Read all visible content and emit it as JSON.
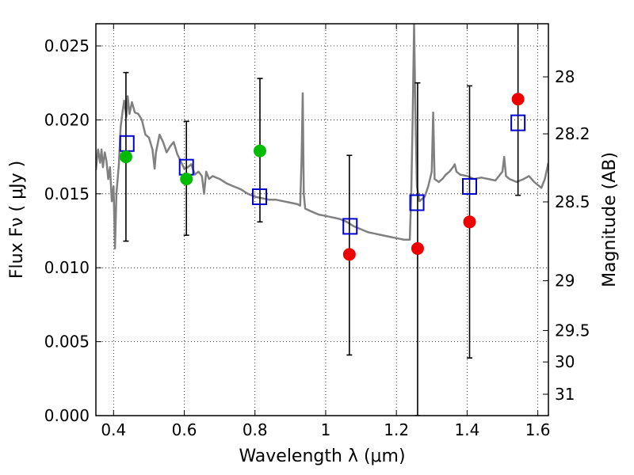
{
  "chart_data": {
    "type": "scatter",
    "xlabel": "Wavelength  λ (μm)",
    "ylabel": "Flux  Fν  ( μJy )",
    "y2label": "Magnitude (AB)",
    "xlim": [
      0.35,
      1.63
    ],
    "ylim": [
      0.0,
      0.0265
    ],
    "grid": true,
    "colors": {
      "sed": "#808080",
      "model_box": "#0000cc",
      "obs_green": "#00bb00",
      "obs_red": "#ee0000",
      "errbar": "#000000"
    },
    "x_ticks": [
      {
        "v": 0.4,
        "label": "0.4"
      },
      {
        "v": 0.6,
        "label": "0.6"
      },
      {
        "v": 0.8,
        "label": "0.8"
      },
      {
        "v": 1.0,
        "label": "1"
      },
      {
        "v": 1.2,
        "label": "1.2"
      },
      {
        "v": 1.4,
        "label": "1.4"
      },
      {
        "v": 1.6,
        "label": "1.6"
      }
    ],
    "y_ticks": [
      {
        "v": 0.0,
        "label": "0.000"
      },
      {
        "v": 0.005,
        "label": "0.005"
      },
      {
        "v": 0.01,
        "label": "0.010"
      },
      {
        "v": 0.015,
        "label": "0.015"
      },
      {
        "v": 0.02,
        "label": "0.020"
      },
      {
        "v": 0.025,
        "label": "0.025"
      }
    ],
    "y2_ticks": [
      {
        "mag": 28.0,
        "label": "28"
      },
      {
        "mag": 28.2,
        "label": "28.2"
      },
      {
        "mag": 28.5,
        "label": "28.5"
      },
      {
        "mag": 29.0,
        "label": "29"
      },
      {
        "mag": 29.5,
        "label": "29.5"
      },
      {
        "mag": 30.0,
        "label": "30"
      },
      {
        "mag": 31.0,
        "label": "31"
      }
    ],
    "sed_curve": [
      [
        0.35,
        0.0166
      ],
      [
        0.356,
        0.018
      ],
      [
        0.362,
        0.0171
      ],
      [
        0.366,
        0.018
      ],
      [
        0.37,
        0.0168
      ],
      [
        0.375,
        0.0178
      ],
      [
        0.38,
        0.0172
      ],
      [
        0.385,
        0.016
      ],
      [
        0.39,
        0.0168
      ],
      [
        0.395,
        0.0145
      ],
      [
        0.4,
        0.0155
      ],
      [
        0.404,
        0.0113
      ],
      [
        0.408,
        0.015
      ],
      [
        0.415,
        0.017
      ],
      [
        0.42,
        0.0195
      ],
      [
        0.425,
        0.0205
      ],
      [
        0.43,
        0.0213
      ],
      [
        0.436,
        0.0202
      ],
      [
        0.44,
        0.0216
      ],
      [
        0.445,
        0.0204
      ],
      [
        0.452,
        0.0212
      ],
      [
        0.46,
        0.0205
      ],
      [
        0.47,
        0.0204
      ],
      [
        0.48,
        0.02
      ],
      [
        0.49,
        0.019
      ],
      [
        0.5,
        0.0188
      ],
      [
        0.51,
        0.018
      ],
      [
        0.516,
        0.0167
      ],
      [
        0.52,
        0.0178
      ],
      [
        0.53,
        0.019
      ],
      [
        0.54,
        0.0185
      ],
      [
        0.55,
        0.0178
      ],
      [
        0.56,
        0.0182
      ],
      [
        0.57,
        0.0185
      ],
      [
        0.58,
        0.0177
      ],
      [
        0.59,
        0.0172
      ],
      [
        0.6,
        0.0167
      ],
      [
        0.61,
        0.0168
      ],
      [
        0.62,
        0.017
      ],
      [
        0.63,
        0.0163
      ],
      [
        0.64,
        0.0165
      ],
      [
        0.65,
        0.0162
      ],
      [
        0.656,
        0.015
      ],
      [
        0.662,
        0.0165
      ],
      [
        0.67,
        0.016
      ],
      [
        0.68,
        0.0162
      ],
      [
        0.7,
        0.016
      ],
      [
        0.72,
        0.0157
      ],
      [
        0.74,
        0.0155
      ],
      [
        0.76,
        0.0153
      ],
      [
        0.78,
        0.015
      ],
      [
        0.8,
        0.0148
      ],
      [
        0.82,
        0.0147
      ],
      [
        0.84,
        0.0146
      ],
      [
        0.86,
        0.0146
      ],
      [
        0.88,
        0.0145
      ],
      [
        0.9,
        0.0144
      ],
      [
        0.92,
        0.0143
      ],
      [
        0.928,
        0.0142
      ],
      [
        0.932,
        0.0175
      ],
      [
        0.935,
        0.0218
      ],
      [
        0.938,
        0.015
      ],
      [
        0.942,
        0.014
      ],
      [
        0.96,
        0.0138
      ],
      [
        0.98,
        0.0136
      ],
      [
        1.0,
        0.0135
      ],
      [
        1.02,
        0.0134
      ],
      [
        1.04,
        0.0133
      ],
      [
        1.06,
        0.0131
      ],
      [
        1.08,
        0.0128
      ],
      [
        1.1,
        0.0126
      ],
      [
        1.12,
        0.0124
      ],
      [
        1.14,
        0.0123
      ],
      [
        1.16,
        0.0122
      ],
      [
        1.18,
        0.0121
      ],
      [
        1.2,
        0.012
      ],
      [
        1.22,
        0.0119
      ],
      [
        1.238,
        0.0119
      ],
      [
        1.242,
        0.015
      ],
      [
        1.246,
        0.02
      ],
      [
        1.25,
        0.0265
      ],
      [
        1.254,
        0.02
      ],
      [
        1.258,
        0.0155
      ],
      [
        1.265,
        0.0145
      ],
      [
        1.28,
        0.0148
      ],
      [
        1.29,
        0.0155
      ],
      [
        1.3,
        0.0165
      ],
      [
        1.304,
        0.0205
      ],
      [
        1.308,
        0.016
      ],
      [
        1.32,
        0.0158
      ],
      [
        1.33,
        0.016
      ],
      [
        1.34,
        0.0163
      ],
      [
        1.35,
        0.0165
      ],
      [
        1.36,
        0.0168
      ],
      [
        1.365,
        0.017
      ],
      [
        1.37,
        0.0165
      ],
      [
        1.38,
        0.0163
      ],
      [
        1.4,
        0.0162
      ],
      [
        1.42,
        0.016
      ],
      [
        1.44,
        0.0161
      ],
      [
        1.46,
        0.016
      ],
      [
        1.48,
        0.0159
      ],
      [
        1.5,
        0.0165
      ],
      [
        1.505,
        0.0175
      ],
      [
        1.51,
        0.0162
      ],
      [
        1.52,
        0.016
      ],
      [
        1.54,
        0.0158
      ],
      [
        1.56,
        0.016
      ],
      [
        1.575,
        0.0162
      ],
      [
        1.59,
        0.0158
      ],
      [
        1.61,
        0.0154
      ],
      [
        1.62,
        0.016
      ],
      [
        1.63,
        0.0171
      ]
    ],
    "model_boxes": [
      {
        "x": 0.438,
        "y": 0.0184
      },
      {
        "x": 0.606,
        "y": 0.0168
      },
      {
        "x": 0.813,
        "y": 0.0148
      },
      {
        "x": 1.069,
        "y": 0.0128
      },
      {
        "x": 1.258,
        "y": 0.0144
      },
      {
        "x": 1.407,
        "y": 0.0155
      },
      {
        "x": 1.544,
        "y": 0.0198
      }
    ],
    "observations": [
      {
        "x": 0.435,
        "y": 0.0175,
        "err_lo": 0.0118,
        "err_hi": 0.0232,
        "color": "green"
      },
      {
        "x": 0.606,
        "y": 0.016,
        "err_lo": 0.0122,
        "err_hi": 0.0199,
        "color": "green"
      },
      {
        "x": 0.814,
        "y": 0.0179,
        "err_lo": 0.0131,
        "err_hi": 0.0228,
        "color": "green"
      },
      {
        "x": 1.067,
        "y": 0.0109,
        "err_lo": 0.0041,
        "err_hi": 0.0176,
        "color": "red"
      },
      {
        "x": 1.26,
        "y": 0.0113,
        "err_lo": 0.0,
        "err_hi": 0.0225,
        "color": "red"
      },
      {
        "x": 1.407,
        "y": 0.0131,
        "err_lo": 0.0039,
        "err_hi": 0.0223,
        "color": "red"
      },
      {
        "x": 1.544,
        "y": 0.0214,
        "err_lo": 0.0149,
        "err_hi": 0.0265,
        "color": "red"
      }
    ]
  }
}
